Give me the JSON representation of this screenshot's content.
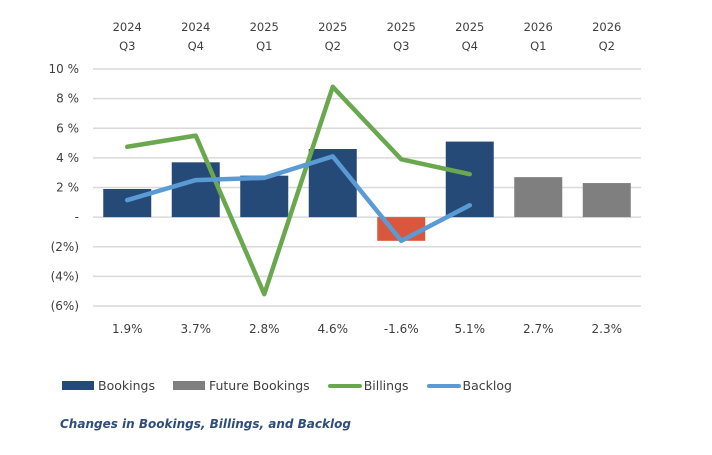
{
  "chart_data": {
    "type": "bar",
    "title": "",
    "caption": "Changes in Bookings, Billings, and Backlog",
    "xlabel": "",
    "ylabel": "",
    "categories": [
      {
        "year": "2024",
        "quarter": "Q3"
      },
      {
        "year": "2024",
        "quarter": "Q4"
      },
      {
        "year": "2025",
        "quarter": "Q1"
      },
      {
        "year": "2025",
        "quarter": "Q2"
      },
      {
        "year": "2025",
        "quarter": "Q3"
      },
      {
        "year": "2025",
        "quarter": "Q4"
      },
      {
        "year": "2026",
        "quarter": "Q1"
      },
      {
        "year": "2026",
        "quarter": "Q2"
      }
    ],
    "ylim": [
      -6,
      10
    ],
    "y_ticks": [
      {
        "value": 10,
        "label": "10 %"
      },
      {
        "value": 8,
        "label": "8 %"
      },
      {
        "value": 6,
        "label": "6 %"
      },
      {
        "value": 4,
        "label": "4 %"
      },
      {
        "value": 2,
        "label": "2 %"
      },
      {
        "value": 0,
        "label": "-"
      },
      {
        "value": -2,
        "label": "(2%)"
      },
      {
        "value": -4,
        "label": "(4%)"
      },
      {
        "value": -6,
        "label": "(6%)"
      }
    ],
    "grid": true,
    "bar_values": [
      1.9,
      3.7,
      2.8,
      4.6,
      -1.6,
      5.1,
      2.7,
      2.3
    ],
    "bar_series": [
      "Bookings",
      "Bookings",
      "Bookings",
      "Bookings",
      "Bookings",
      "Bookings",
      "Future Bookings",
      "Future Bookings"
    ],
    "data_labels": [
      "1.9%",
      "3.7%",
      "2.8%",
      "4.6%",
      "-1.6%",
      "5.1%",
      "2.7%",
      "2.3%"
    ],
    "series": [
      {
        "name": "Bookings",
        "type": "bar",
        "color": "#264A78",
        "negative_color": "#D9583B"
      },
      {
        "name": "Future Bookings",
        "type": "bar",
        "color": "#7F7F7F"
      },
      {
        "name": "Billings",
        "type": "line",
        "color": "#6AA84F",
        "values": [
          4.75,
          5.5,
          -5.2,
          8.8,
          3.9,
          2.9,
          null,
          null
        ]
      },
      {
        "name": "Backlog",
        "type": "line",
        "color": "#5B9BD5",
        "values": [
          1.15,
          2.5,
          2.65,
          4.1,
          -1.6,
          0.8,
          null,
          null
        ]
      }
    ],
    "legend": {
      "placement": "bottom-left",
      "entries": [
        {
          "label": "Bookings",
          "kind": "box",
          "color": "#264A78"
        },
        {
          "label": "Future Bookings",
          "kind": "box",
          "color": "#7F7F7F"
        },
        {
          "label": "Billings",
          "kind": "line",
          "color": "#6AA84F"
        },
        {
          "label": "Backlog",
          "kind": "line",
          "color": "#5B9BD5"
        }
      ]
    }
  }
}
